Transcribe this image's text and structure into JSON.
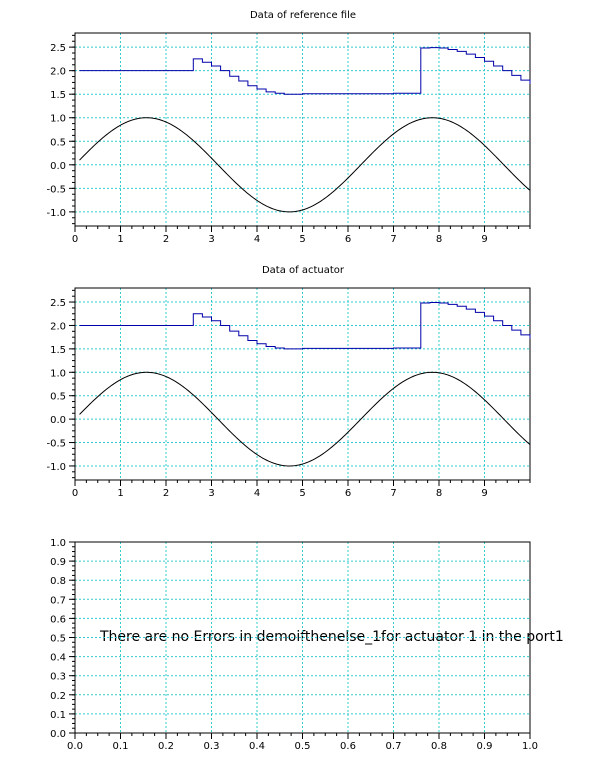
{
  "chart_data": [
    {
      "type": "line",
      "title": "Data of reference file",
      "xlabel": "",
      "ylabel": "",
      "xlim": [
        0,
        10
      ],
      "ylim": [
        -1.3,
        2.8
      ],
      "grid": true,
      "x_ticks": [
        "0",
        "1",
        "2",
        "3",
        "4",
        "5",
        "6",
        "7",
        "8",
        "9"
      ],
      "y_ticks": [
        "-1.0",
        "-0.5",
        "0.0",
        "0.5",
        "1.0",
        "1.5",
        "2.0",
        "2.5"
      ],
      "series": [
        {
          "color": "#0000aa",
          "style": "step",
          "x": [
            0.1,
            2.6,
            2.6,
            2.8,
            3.0,
            3.2,
            3.4,
            3.6,
            3.8,
            4.0,
            4.2,
            4.4,
            4.6,
            4.8,
            5.0,
            5.5,
            6.0,
            6.5,
            7.0,
            7.6,
            7.6,
            7.8,
            8.0,
            8.2,
            8.4,
            8.6,
            8.8,
            9.0,
            9.2,
            9.4,
            9.6,
            9.8,
            10.0
          ],
          "y": [
            2.0,
            2.0,
            2.25,
            2.18,
            2.1,
            2.0,
            1.88,
            1.78,
            1.68,
            1.61,
            1.55,
            1.52,
            1.5,
            1.5,
            1.51,
            1.51,
            1.51,
            1.51,
            1.52,
            1.52,
            2.48,
            2.49,
            2.48,
            2.45,
            2.41,
            2.35,
            2.28,
            2.2,
            2.1,
            2.0,
            1.9,
            1.8,
            1.72
          ]
        },
        {
          "color": "#000000",
          "style": "sine",
          "x_range": [
            0.1,
            10
          ],
          "y_formula": "sin(x)"
        }
      ]
    },
    {
      "type": "line",
      "title": "Data of actuator",
      "xlabel": "",
      "ylabel": "",
      "xlim": [
        0,
        10
      ],
      "ylim": [
        -1.3,
        2.8
      ],
      "grid": true,
      "x_ticks": [
        "0",
        "1",
        "2",
        "3",
        "4",
        "5",
        "6",
        "7",
        "8",
        "9"
      ],
      "y_ticks": [
        "-1.0",
        "-0.5",
        "0.0",
        "0.5",
        "1.0",
        "1.5",
        "2.0",
        "2.5"
      ],
      "series": [
        {
          "color": "#0000aa",
          "style": "step",
          "x": [
            0.1,
            2.6,
            2.6,
            2.8,
            3.0,
            3.2,
            3.4,
            3.6,
            3.8,
            4.0,
            4.2,
            4.4,
            4.6,
            4.8,
            5.0,
            5.5,
            6.0,
            6.5,
            7.0,
            7.6,
            7.6,
            7.8,
            8.0,
            8.2,
            8.4,
            8.6,
            8.8,
            9.0,
            9.2,
            9.4,
            9.6,
            9.8,
            10.0
          ],
          "y": [
            2.0,
            2.0,
            2.25,
            2.18,
            2.1,
            2.0,
            1.88,
            1.78,
            1.68,
            1.61,
            1.55,
            1.52,
            1.5,
            1.5,
            1.51,
            1.51,
            1.51,
            1.51,
            1.52,
            1.52,
            2.48,
            2.49,
            2.48,
            2.45,
            2.41,
            2.35,
            2.28,
            2.2,
            2.1,
            2.0,
            1.9,
            1.8,
            1.72
          ]
        },
        {
          "color": "#000000",
          "style": "sine",
          "x_range": [
            0.1,
            10
          ],
          "y_formula": "sin(x)"
        }
      ]
    },
    {
      "type": "line",
      "title": "",
      "xlabel": "",
      "ylabel": "",
      "xlim": [
        0,
        1
      ],
      "ylim": [
        0,
        1
      ],
      "grid": true,
      "x_ticks": [
        "0.0",
        "0.1",
        "0.2",
        "0.3",
        "0.4",
        "0.5",
        "0.6",
        "0.7",
        "0.8",
        "0.9",
        "1.0"
      ],
      "y_ticks": [
        "0.0",
        "0.1",
        "0.2",
        "0.3",
        "0.4",
        "0.5",
        "0.6",
        "0.7",
        "0.8",
        "0.9",
        "1.0"
      ],
      "annotation": "There are no Errors in demoifthenelse_1for actuator  1 in the port1",
      "series": []
    }
  ]
}
